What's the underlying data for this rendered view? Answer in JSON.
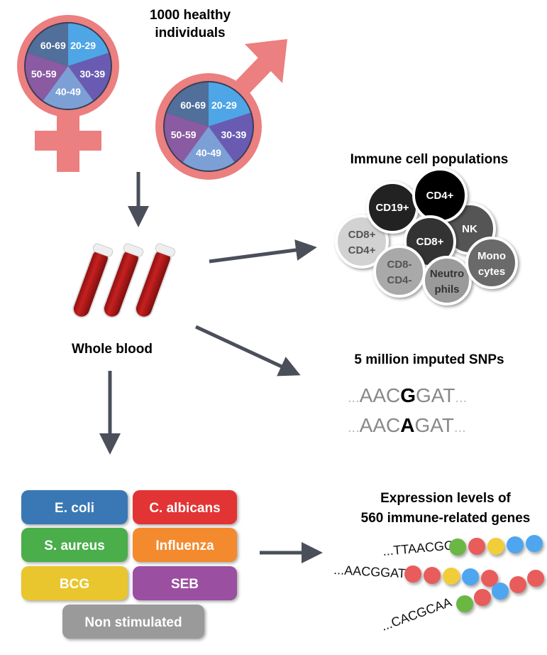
{
  "cohort": {
    "title_line1": "1000 healthy individuals",
    "title_line1a": "1000 healthy",
    "title_line1b": "individuals",
    "age_groups": [
      "20-29",
      "30-39",
      "40-49",
      "50-59",
      "60-69"
    ],
    "age_colors": [
      "#4ea6e6",
      "#6a5bb2",
      "#7c9fd6",
      "#8a5aa2",
      "#506f9a"
    ],
    "symbol_color": "#ec7f7f"
  },
  "blood": {
    "label": "Whole blood"
  },
  "immune": {
    "title": "Immune cell populations",
    "cells": [
      {
        "line1": "CD19+",
        "line2": ""
      },
      {
        "line1": "CD4+",
        "line2": ""
      },
      {
        "line1": "NK",
        "line2": ""
      },
      {
        "line1": "CD8+",
        "line2": ""
      },
      {
        "line1": "CD8+",
        "line2": "CD4+"
      },
      {
        "line1": "CD8-",
        "line2": "CD4-"
      },
      {
        "line1": "Neutro",
        "line2": "phils"
      },
      {
        "line1": "Mono",
        "line2": "cytes"
      }
    ]
  },
  "snps": {
    "title": "5 million imputed SNPs",
    "seq1": {
      "prefix": "AAC",
      "variant": "G",
      "suffix": "GAT"
    },
    "seq2": {
      "prefix": "AAC",
      "variant": "A",
      "suffix": "GAT"
    },
    "ellipsis": "..."
  },
  "stimuli": [
    "E. coli",
    "C. albicans",
    "S. aureus",
    "Influenza",
    "BCG",
    "SEB",
    "Non stimulated"
  ],
  "stimuli_colors": [
    "#3a78b5",
    "#e23434",
    "#4aae4a",
    "#f38a2e",
    "#e9c62d",
    "#9b4fa1",
    "#9a9a9a"
  ],
  "expression": {
    "title_line1": "Expression levels of",
    "title_line2": "560 immune-related genes",
    "sequences": [
      "...TTAACGG",
      "...AACGGAT",
      "...CACGCAA"
    ]
  }
}
